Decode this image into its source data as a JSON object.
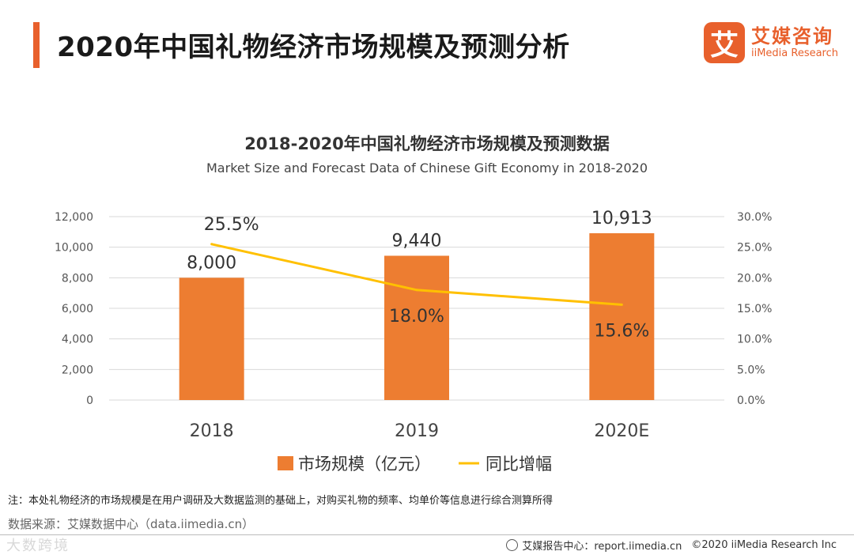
{
  "page_title": "2020年中国礼物经济市场规模及预测分析",
  "logo": {
    "mark": "艾",
    "cn": "艾媒咨询",
    "en": "iiMedia Research"
  },
  "note": "注：本处礼物经济的市场规模是在用户调研及大数据监测的基础上，对购买礼物的频率、均单价等信息进行综合测算所得",
  "source": "数据来源：艾媒数据中心（data.iimedia.cn）",
  "watermark": "大数跨境",
  "footer": {
    "report": "艾媒报告中心：report.iimedia.cn",
    "copyright": "©2020  iiMedia Research  Inc"
  },
  "colors": {
    "accent": "#E8602C",
    "bar": "#ED7D31",
    "line": "#FFC000",
    "grid": "#D9D9D9"
  },
  "chart_data": {
    "type": "bar+line",
    "title": "2018-2020年中国礼物经济市场规模及预测数据",
    "subtitle": "Market Size and Forecast Data of Chinese Gift Economy in 2018-2020",
    "categories": [
      "2018",
      "2019",
      "2020E"
    ],
    "series": [
      {
        "name": "市场规模（亿元）",
        "type": "bar",
        "axis": "left",
        "values": [
          8000,
          9440,
          10913
        ],
        "labels": [
          "8,000",
          "9,440",
          "10,913"
        ]
      },
      {
        "name": "同比增幅",
        "type": "line",
        "axis": "right",
        "values": [
          25.5,
          18.0,
          15.6
        ],
        "labels": [
          "25.5%",
          "18.0%",
          "15.6%"
        ]
      }
    ],
    "left_axis": {
      "min": 0,
      "max": 12000,
      "ticks": [
        0,
        2000,
        4000,
        6000,
        8000,
        10000,
        12000
      ],
      "tick_labels": [
        "0",
        "2,000",
        "4,000",
        "6,000",
        "8,000",
        "10,000",
        "12,000"
      ]
    },
    "right_axis": {
      "min": 0,
      "max": 30,
      "ticks": [
        0,
        5,
        10,
        15,
        20,
        25,
        30
      ],
      "tick_labels": [
        "0.0%",
        "5.0%",
        "10.0%",
        "15.0%",
        "20.0%",
        "25.0%",
        "30.0%"
      ]
    },
    "legend": [
      "市场规模（亿元）",
      "同比增幅"
    ],
    "legend_position": "bottom",
    "grid": true
  }
}
